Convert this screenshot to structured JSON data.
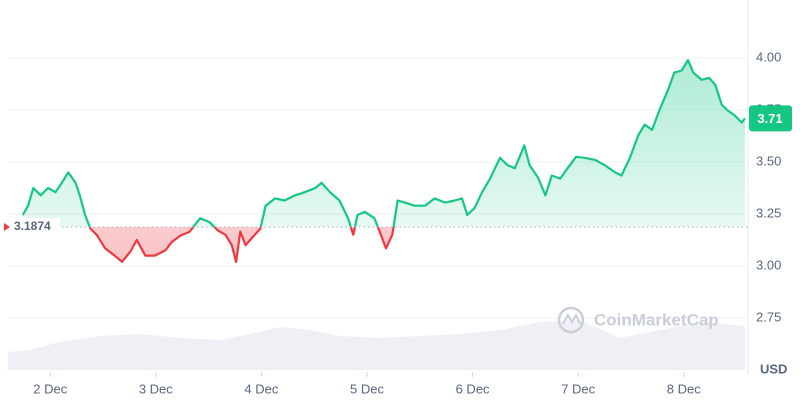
{
  "chart_data": {
    "type": "line",
    "x": [
      1.74,
      1.79,
      1.84,
      1.91,
      1.98,
      2.05,
      2.11,
      2.17,
      2.24,
      2.28,
      2.33,
      2.38,
      2.44,
      2.52,
      2.61,
      2.68,
      2.76,
      2.82,
      2.9,
      2.99,
      3.09,
      3.15,
      3.23,
      3.32,
      3.42,
      3.51,
      3.59,
      3.66,
      3.72,
      3.76,
      3.8,
      3.85,
      3.91,
      3.99,
      4.04,
      4.13,
      4.22,
      4.32,
      4.41,
      4.51,
      4.57,
      4.65,
      4.74,
      4.82,
      4.87,
      4.91,
      4.98,
      5.07,
      5.12,
      5.18,
      5.24,
      5.29,
      5.36,
      5.45,
      5.55,
      5.64,
      5.74,
      5.83,
      5.9,
      5.95,
      6.02,
      6.09,
      6.16,
      6.26,
      6.33,
      6.4,
      6.45,
      6.49,
      6.54,
      6.62,
      6.69,
      6.75,
      6.83,
      6.9,
      6.98,
      7.06,
      7.16,
      7.25,
      7.35,
      7.41,
      7.49,
      7.57,
      7.63,
      7.7,
      7.77,
      7.85,
      7.91,
      7.98,
      8.04,
      8.09,
      8.17,
      8.24,
      8.3,
      8.36,
      8.41,
      8.48,
      8.55,
      8.58
    ],
    "series": [
      {
        "color": "#16c784",
        "below_color": "#ea3943",
        "values": [
          3.245,
          3.29,
          3.375,
          3.34,
          3.375,
          3.355,
          3.4,
          3.45,
          3.4,
          3.34,
          3.245,
          3.18,
          3.15,
          3.085,
          3.05,
          3.02,
          3.07,
          3.125,
          3.05,
          3.05,
          3.075,
          3.115,
          3.145,
          3.165,
          3.23,
          3.21,
          3.17,
          3.15,
          3.1,
          3.02,
          3.165,
          3.1,
          3.135,
          3.18,
          3.29,
          3.325,
          3.315,
          3.34,
          3.355,
          3.375,
          3.4,
          3.355,
          3.315,
          3.23,
          3.15,
          3.245,
          3.26,
          3.23,
          3.165,
          3.085,
          3.15,
          3.315,
          3.305,
          3.29,
          3.29,
          3.325,
          3.305,
          3.315,
          3.325,
          3.245,
          3.28,
          3.355,
          3.415,
          3.52,
          3.485,
          3.47,
          3.53,
          3.58,
          3.485,
          3.425,
          3.34,
          3.435,
          3.42,
          3.47,
          3.525,
          3.52,
          3.51,
          3.485,
          3.45,
          3.435,
          3.52,
          3.63,
          3.68,
          3.655,
          3.75,
          3.845,
          3.93,
          3.94,
          3.99,
          3.93,
          3.895,
          3.905,
          3.87,
          3.775,
          3.75,
          3.725,
          3.69,
          3.71
        ]
      }
    ],
    "baseline": 3.1874,
    "last_price": 3.71,
    "xlim": [
      1.6,
      8.58
    ],
    "xticks": [
      {
        "value": 2,
        "label": "2 Dec"
      },
      {
        "value": 3,
        "label": "3 Dec"
      },
      {
        "value": 4,
        "label": "4 Dec"
      },
      {
        "value": 5,
        "label": "5 Dec"
      },
      {
        "value": 6,
        "label": "6 Dec"
      },
      {
        "value": 7,
        "label": "7 Dec"
      },
      {
        "value": 8,
        "label": "8 Dec"
      }
    ],
    "ylim": [
      2.5,
      4.25
    ],
    "yticks": [
      2.75,
      {
        "value": 3,
        "label": "3.00"
      },
      3.25,
      {
        "value": 3.5,
        "label": "3.50"
      },
      3.75,
      {
        "value": 4,
        "label": "4.00"
      }
    ],
    "y_unit": "USD",
    "watermark": "CoinMarketCap",
    "grid": true
  }
}
